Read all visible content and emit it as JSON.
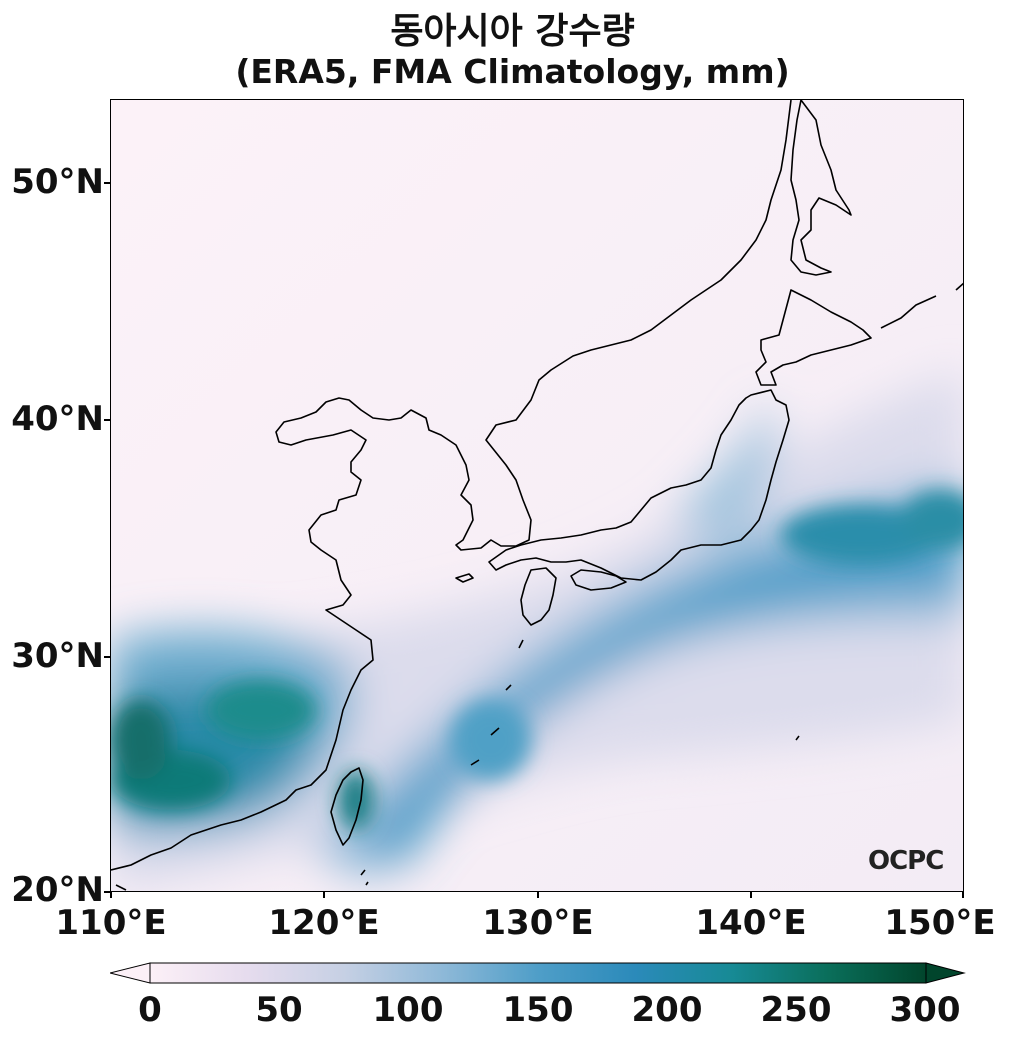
{
  "title": {
    "line1": "동아시아 강수량",
    "line2": "(ERA5, FMA Climatology, mm)"
  },
  "map": {
    "lon_range": [
      110,
      150
    ],
    "lat_range": [
      20,
      53.5
    ],
    "lat_ticks": [
      "50°N",
      "40°N",
      "30°N",
      "20°N"
    ],
    "lon_ticks": [
      "110°E",
      "120°E",
      "130°E",
      "140°E",
      "150°E"
    ],
    "coastline_color": "#000000"
  },
  "colorbar": {
    "ticks": [
      "0",
      "50",
      "100",
      "150",
      "200",
      "250",
      "300"
    ],
    "range": [
      0,
      300
    ],
    "extend": "both",
    "colors": [
      "#fcf0f7",
      "#e6dcee",
      "#c6d0e4",
      "#8fb9d8",
      "#4f9ec8",
      "#2b8aba",
      "#178a95",
      "#0a6e5a",
      "#01452c"
    ]
  },
  "watermark": "OCPC"
}
